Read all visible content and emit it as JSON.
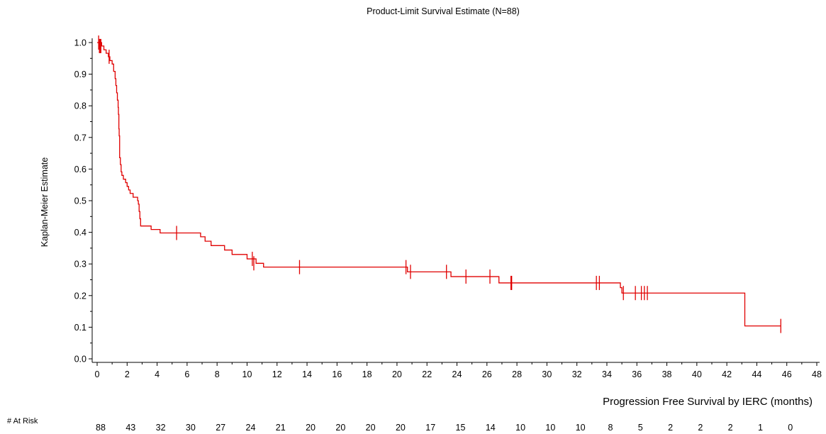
{
  "chart_data": {
    "type": "line",
    "title": "Product-Limit Survival Estimate (N=88)",
    "xlabel": "Progression Free Survival by IERC (months)",
    "ylabel": "Kaplan-Meier Estimate",
    "xlim": [
      0,
      48
    ],
    "ylim": [
      0,
      1.0
    ],
    "x_ticks": [
      0,
      2,
      4,
      6,
      8,
      10,
      12,
      14,
      16,
      18,
      20,
      22,
      24,
      26,
      28,
      30,
      32,
      34,
      36,
      38,
      40,
      42,
      44,
      46,
      48
    ],
    "y_ticks": [
      0.0,
      0.1,
      0.2,
      0.3,
      0.4,
      0.5,
      0.6,
      0.7,
      0.8,
      0.9,
      1.0
    ],
    "y_tick_labels": [
      "0.0",
      "0.1",
      "0.2",
      "0.3",
      "0.4",
      "0.5",
      "0.6",
      "0.7",
      "0.8",
      "0.9",
      "1.0"
    ],
    "grid": false,
    "series_color": "#e00000",
    "series": [
      {
        "steps": [
          [
            0,
            1.0
          ],
          [
            0.3,
            0.989
          ],
          [
            0.45,
            0.977
          ],
          [
            0.6,
            0.966
          ],
          [
            0.75,
            0.955
          ],
          [
            0.85,
            0.943
          ],
          [
            1.0,
            0.932
          ],
          [
            1.1,
            0.909
          ],
          [
            1.2,
            0.886
          ],
          [
            1.25,
            0.864
          ],
          [
            1.3,
            0.841
          ],
          [
            1.35,
            0.818
          ],
          [
            1.4,
            0.795
          ],
          [
            1.42,
            0.773
          ],
          [
            1.45,
            0.727
          ],
          [
            1.47,
            0.705
          ],
          [
            1.5,
            0.636
          ],
          [
            1.55,
            0.614
          ],
          [
            1.6,
            0.591
          ],
          [
            1.65,
            0.58
          ],
          [
            1.75,
            0.568
          ],
          [
            1.9,
            0.557
          ],
          [
            2.0,
            0.545
          ],
          [
            2.1,
            0.534
          ],
          [
            2.2,
            0.523
          ],
          [
            2.4,
            0.511
          ],
          [
            2.7,
            0.5
          ],
          [
            2.75,
            0.489
          ],
          [
            2.8,
            0.466
          ],
          [
            2.85,
            0.443
          ],
          [
            2.9,
            0.42
          ],
          [
            3.5,
            0.42
          ],
          [
            3.6,
            0.409
          ],
          [
            4.2,
            0.398
          ],
          [
            6.9,
            0.386
          ],
          [
            7.2,
            0.372
          ],
          [
            7.6,
            0.358
          ],
          [
            8.5,
            0.344
          ],
          [
            9.0,
            0.33
          ],
          [
            10.0,
            0.316
          ],
          [
            10.6,
            0.302
          ],
          [
            11.1,
            0.29
          ],
          [
            20.7,
            0.275
          ],
          [
            23.6,
            0.26
          ],
          [
            26.8,
            0.24
          ],
          [
            34.9,
            0.225
          ],
          [
            35.0,
            0.208
          ],
          [
            43.2,
            0.104
          ],
          [
            45.6,
            0.104
          ]
        ],
        "censored": [
          [
            0.1,
            1.0
          ],
          [
            0.15,
            0.989
          ],
          [
            0.2,
            0.989
          ],
          [
            0.25,
            0.989
          ],
          [
            0.8,
            0.955
          ],
          [
            5.3,
            0.398
          ],
          [
            10.35,
            0.316
          ],
          [
            10.45,
            0.302
          ],
          [
            13.5,
            0.29
          ],
          [
            20.6,
            0.29
          ],
          [
            20.9,
            0.275
          ],
          [
            23.3,
            0.275
          ],
          [
            24.6,
            0.26
          ],
          [
            26.2,
            0.26
          ],
          [
            27.6,
            0.24
          ],
          [
            27.65,
            0.24
          ],
          [
            33.3,
            0.24
          ],
          [
            33.5,
            0.24
          ],
          [
            35.1,
            0.208
          ],
          [
            35.9,
            0.208
          ],
          [
            36.3,
            0.208
          ],
          [
            36.5,
            0.208
          ],
          [
            36.7,
            0.208
          ],
          [
            45.6,
            0.104
          ]
        ]
      }
    ],
    "at_risk": {
      "label": "# At Risk",
      "times": [
        0,
        2,
        4,
        6,
        8,
        10,
        12,
        14,
        16,
        18,
        20,
        22,
        24,
        26,
        28,
        30,
        32,
        34,
        36,
        38,
        40,
        42,
        44,
        46
      ],
      "counts": [
        "88",
        "43",
        "32",
        "30",
        "27",
        "24",
        "21",
        "20",
        "20",
        "20",
        "20",
        "17",
        "15",
        "14",
        "10",
        "10",
        "10",
        "8",
        "5",
        "2",
        "2",
        "2",
        "1",
        "0"
      ]
    }
  }
}
